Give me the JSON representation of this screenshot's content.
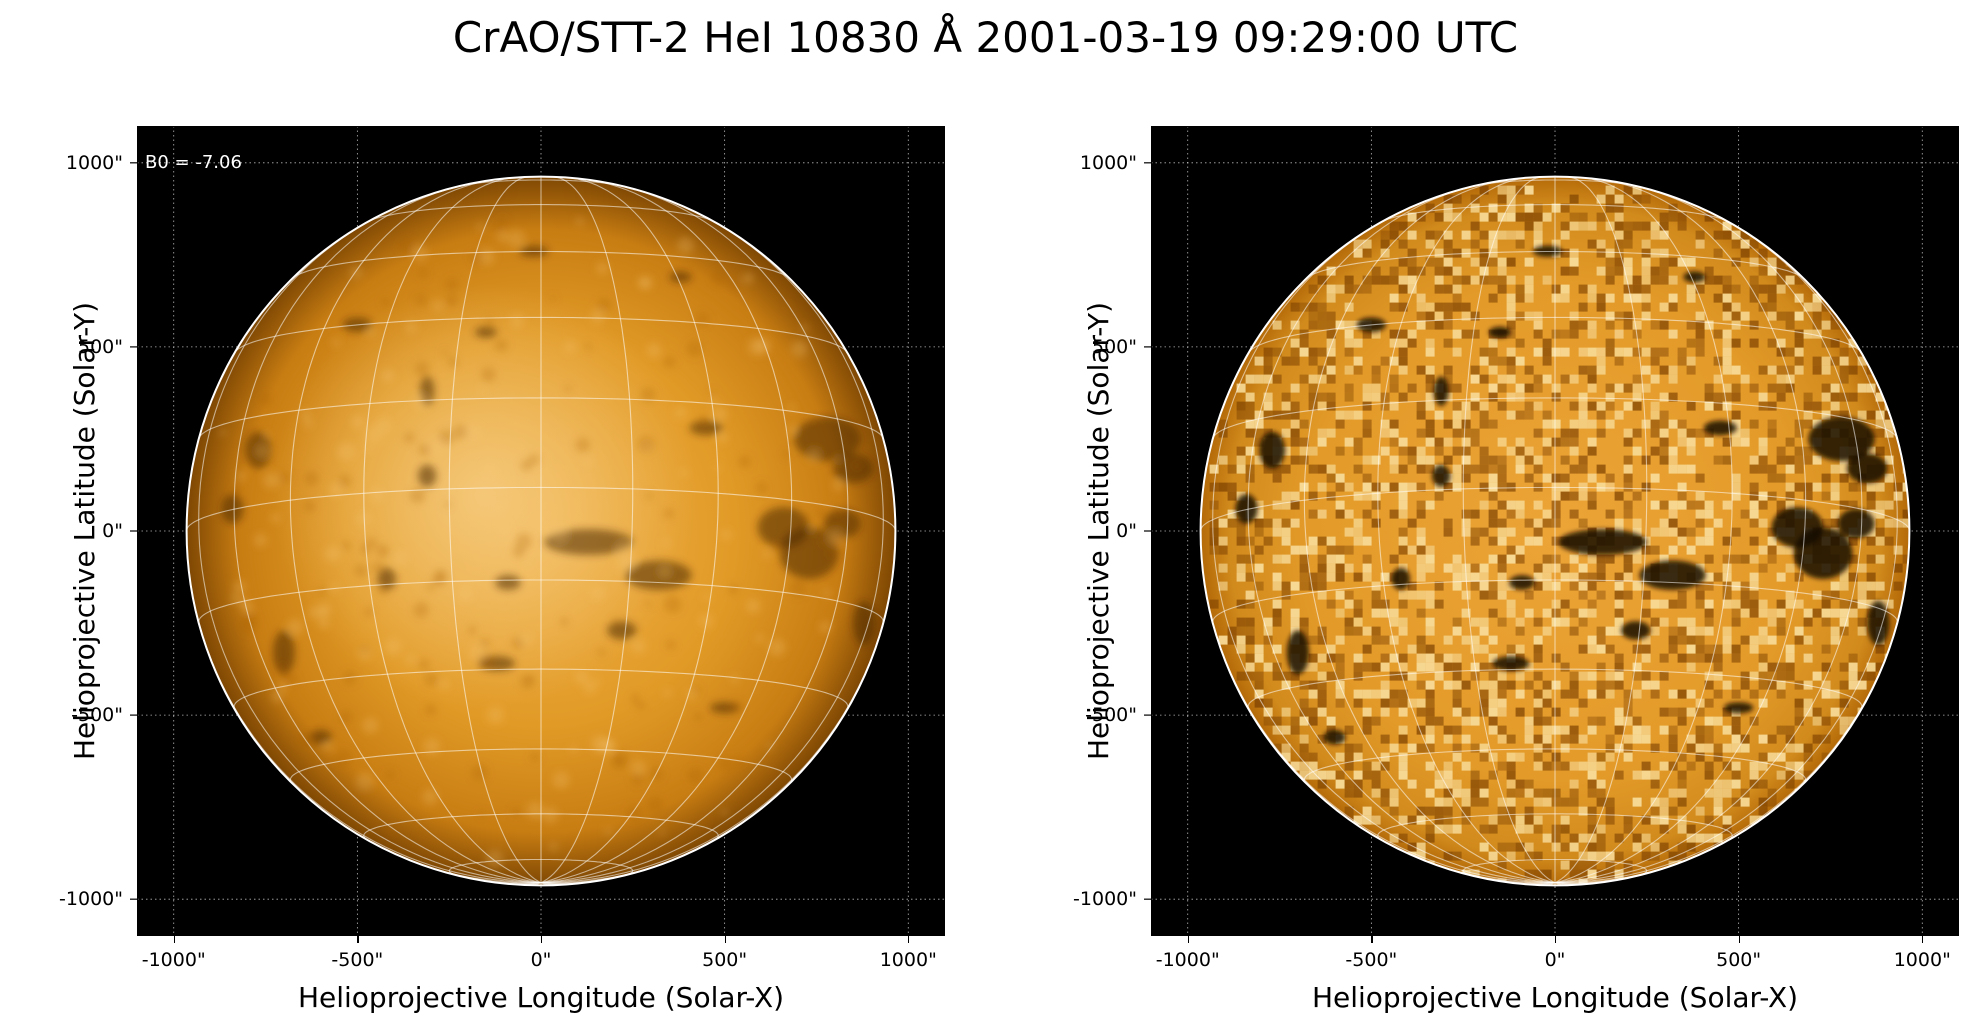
{
  "title": "CrAO/STT-2 HeI 10830 Å 2001-03-19 09:29:00 UTC",
  "colors": {
    "background": "#000000",
    "disk_dark": "#8a4f00",
    "disk_mid": "#d58c16",
    "disk_light": "#f4c46d",
    "grid": "#ffffff"
  },
  "panels": [
    {
      "id": "left",
      "annotation": "B0 = -7.06",
      "xlabel": "Helioprojective Longitude (Solar-X)",
      "ylabel": "Helioprojective Latitude (Solar-Y)",
      "xticks": [
        "-1000\"",
        "-500\"",
        "0\"",
        "500\"",
        "1000\""
      ],
      "yticks": [
        "1000\"",
        "500\"",
        "0\"",
        "-500\"",
        "-1000\""
      ],
      "xlim": [
        -1100,
        1100
      ],
      "ylim": [
        -1100,
        1100
      ],
      "solar_radius_arcsec": 965,
      "b0_deg": -7.06,
      "style": "smooth"
    },
    {
      "id": "right",
      "annotation": "",
      "xlabel": "Helioprojective Longitude (Solar-X)",
      "ylabel": "Helioprojective Latitude (Solar-Y)",
      "xticks": [
        "-1000\"",
        "-500\"",
        "0\"",
        "500\"",
        "1000\""
      ],
      "yticks": [
        "1000\"",
        "500\"",
        "0\"",
        "-500\"",
        "-1000\""
      ],
      "xlim": [
        -1100,
        1100
      ],
      "ylim": [
        -1100,
        1100
      ],
      "solar_radius_arcsec": 965,
      "b0_deg": -7.06,
      "style": "enhanced"
    }
  ]
}
